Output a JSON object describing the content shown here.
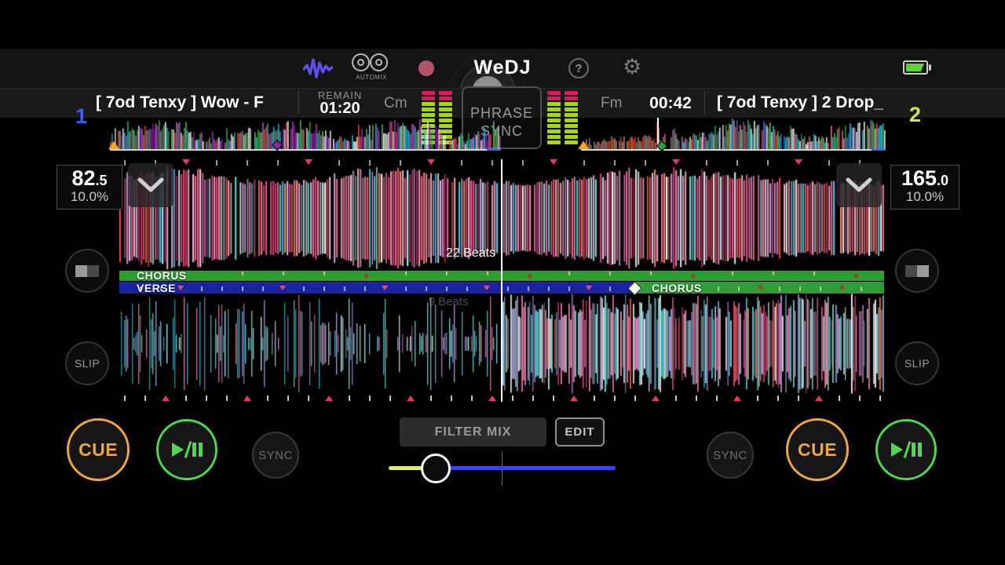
{
  "header": {
    "app_title": "WeDJ",
    "automix_label": "AUTOMIX",
    "help_glyph": "?",
    "settings_glyph": "⚙"
  },
  "deck1": {
    "number": "1",
    "title": "[ 7od Tenxy ] Wow - F",
    "remain_label": "REMAIN",
    "remain_value": "01:20",
    "key": "Cm",
    "bpm_int": "82",
    "bpm_frac": ".5",
    "tempo_range": "10.0%",
    "phrase_current": "CHORUS",
    "beats_label": "22 Beats",
    "cue_label": "CUE",
    "sync_label": "SYNC",
    "slip_label": "SLIP"
  },
  "deck2": {
    "number": "2",
    "title": "[ 7od Tenxy ] 2 Drop_",
    "time_value": "00:42",
    "key": "Fm",
    "bpm_int": "165",
    "bpm_frac": ".0",
    "tempo_range": "10.0%",
    "phrase_current": "VERSE",
    "phrase_next": "CHORUS",
    "beats_hint": "9 Beats",
    "cue_label": "CUE",
    "sync_label": "SYNC",
    "slip_label": "SLIP"
  },
  "mixer": {
    "phrase_sync_line1": "PHRASE",
    "phrase_sync_line2": "SYNC",
    "filter_mix_label": "FILTER MIX",
    "edit_label": "EDIT"
  },
  "colors": {
    "deck1_accent": "#3d5afe",
    "deck2_accent": "#d4e157",
    "cue": "#f0a63c",
    "play": "#4cd94c",
    "sync_idle": "#6e6e6e",
    "meter_red": "#e0175a",
    "meter_green": "#a6d80c",
    "phrase_green": "#2f9e32",
    "phrase_blue": "#1b23a3",
    "crossfader_left": "#e2e96b",
    "crossfader_right": "#3a43ee",
    "battery": "#5fd13a",
    "record": "#b25667",
    "wave_icon": "#6050f0",
    "playhead": "#ffffff"
  },
  "waveform": {
    "deck1_palette": [
      "#f06292",
      "#ec407a",
      "#f48fb1",
      "#f8bbd0",
      "#ffffff",
      "#4dd0e1",
      "#b2ebf2",
      "#ce93d8",
      "#ef5350",
      "#ff8a65",
      "#e1bee7",
      "#f06292",
      "#ec407a",
      "#f8bbd0"
    ],
    "deck2_palette": [
      "#80deea",
      "#4dd0e1",
      "#b2ebf2",
      "#e0f7fa",
      "#ffffff",
      "#f48fb1",
      "#ce93d8",
      "#80cbc4",
      "#9fa8da"
    ],
    "mini1_palette": [
      "#ffffff",
      "#e8f5e9",
      "#66bb6a",
      "#43a047",
      "#ab47bc",
      "#8e24aa",
      "#ef5350",
      "#eceff1",
      "#26c6da",
      "#f5f5f5",
      "#ba68c8"
    ],
    "mini2_palette": [
      "#a1887f",
      "#d84315",
      "#ffffff",
      "#66bb6a",
      "#ef5350",
      "#26c6da",
      "#f48fb1",
      "#eceff1",
      "#43a047",
      "#5c6bc0"
    ]
  }
}
